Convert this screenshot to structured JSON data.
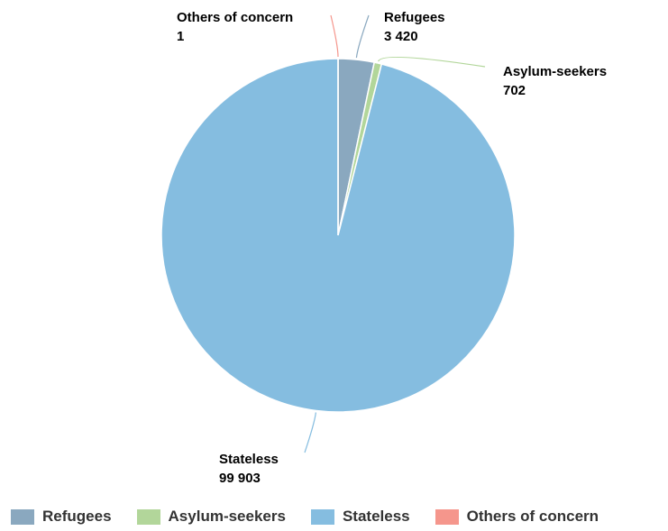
{
  "chart_data": {
    "type": "pie",
    "title": "",
    "slices": [
      {
        "name": "Refugees",
        "value": 3420,
        "value_label": "3 420",
        "color": "#8aa8bf"
      },
      {
        "name": "Asylum-seekers",
        "value": 702,
        "value_label": "702",
        "color": "#b2d69a"
      },
      {
        "name": "Stateless",
        "value": 99903,
        "value_label": "99 903",
        "color": "#85bde0"
      },
      {
        "name": "Others of concern",
        "value": 1,
        "value_label": "1",
        "color": "#f5968c"
      }
    ],
    "legend": {
      "position": "bottom"
    }
  }
}
